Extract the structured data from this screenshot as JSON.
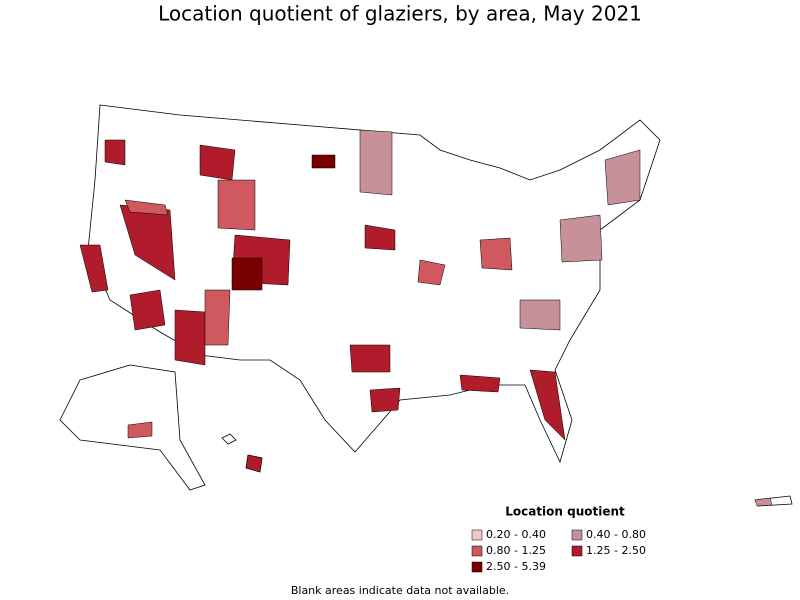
{
  "header": {
    "title": "Location quotient of glaziers, by area, May 2021"
  },
  "legend": {
    "title": "Location quotient",
    "items": [
      {
        "label": "0.20 - 0.40",
        "color": "#f4c7c9"
      },
      {
        "label": "0.40 - 0.80",
        "color": "#c8919a"
      },
      {
        "label": "0.80 - 1.25",
        "color": "#d0585f"
      },
      {
        "label": "1.25 - 2.50",
        "color": "#b01c2c"
      },
      {
        "label": "2.50 - 5.39",
        "color": "#7a0000"
      }
    ]
  },
  "footnote": "Blank areas indicate data not available."
}
